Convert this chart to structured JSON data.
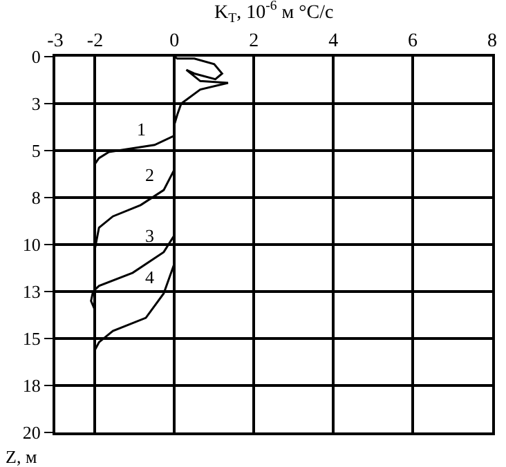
{
  "chart_data": {
    "type": "line",
    "xlabel": "K$_{Т}$, 10$^{-6}$ м °C/с",
    "ylabel": "Z, м",
    "xlim": [
      -3,
      8
    ],
    "xticks": [
      -3,
      -2,
      0,
      2,
      4,
      6,
      8
    ],
    "ylim": [
      20,
      0
    ],
    "yticks": [
      0,
      {
        "value": 2.5,
        "label": "3"
      },
      5,
      {
        "value": 7.5,
        "label": "8"
      },
      10,
      {
        "value": 12.5,
        "label": "13"
      },
      15,
      {
        "value": 17.5,
        "label": "18"
      },
      20
    ],
    "grid": true,
    "legend": false,
    "marker": "none",
    "line_style": "solid",
    "series": [
      {
        "name": "1",
        "color": "#000000",
        "x": [
          0,
          0.07,
          0.5,
          1.0,
          1.2,
          1.03,
          0.5,
          0.3,
          0.65,
          1.35,
          0.65,
          0.17,
          0.07,
          0,
          0,
          -0.5,
          -1.65,
          -1.9,
          -2
        ],
        "values": [
          0,
          0.1,
          0.1,
          0.4,
          0.9,
          1.2,
          0.9,
          0.7,
          1.3,
          1.4,
          1.75,
          2.5,
          3.1,
          3.6,
          4.2,
          4.7,
          5.07,
          5.4,
          5.7
        ]
      },
      {
        "name": "2",
        "color": "#000000",
        "x": [
          0,
          0,
          -0.27,
          -0.85,
          -1.55,
          -1.9,
          -2
        ],
        "values": [
          0,
          6.0,
          7.1,
          7.9,
          8.5,
          9.1,
          10.2
        ]
      },
      {
        "name": "3",
        "color": "#000000",
        "x": [
          0,
          0,
          -0.27,
          -1.05,
          -1.9,
          -2.05,
          -2.1,
          -2
        ],
        "values": [
          0,
          9.5,
          10.4,
          11.5,
          12.2,
          12.5,
          13.0,
          13.5
        ]
      },
      {
        "name": "4",
        "color": "#000000",
        "x": [
          0,
          0,
          -0.27,
          -0.72,
          -1.55,
          -1.9,
          -2,
          -2
        ],
        "values": [
          0,
          11.0,
          12.6,
          13.9,
          14.6,
          15.2,
          15.6,
          17.7
        ]
      }
    ]
  }
}
